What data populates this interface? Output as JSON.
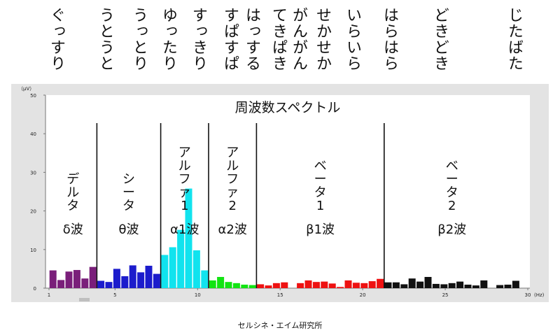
{
  "onomatopoeia": [
    "ぐっすり",
    "うとうと",
    "うっとり",
    "ゆったり",
    "すっきり",
    "すぱすぱ",
    "はっする",
    "てきぱき",
    "がんがん",
    "せかせか",
    "いらいら",
    "はらはら",
    "どきどき",
    "じたばた"
  ],
  "footer": "セルシネ・エイム研究所",
  "chart_data": {
    "type": "bar",
    "title": "周波数スペクトル",
    "y_unit": "（μV）",
    "x_unit": "(Hz)",
    "ylim": [
      0,
      50
    ],
    "xlim": [
      1,
      30
    ],
    "y_ticks": [
      0,
      10,
      20,
      30,
      40,
      50
    ],
    "x_ticks": [
      1,
      5,
      10,
      15,
      20,
      25,
      30
    ],
    "bands": [
      {
        "name": "デルタ",
        "wave": "δ波",
        "color": "#7a1f7a",
        "values": [
          4.6,
          2.1,
          4.3,
          4.7,
          2.5,
          5.5
        ]
      },
      {
        "name": "シータ",
        "wave": "θ波",
        "color": "#1c1ccc",
        "values": [
          1.9,
          1.6,
          5.0,
          3.1,
          5.9,
          4.1,
          5.8,
          3.7
        ]
      },
      {
        "name": "アルファ1",
        "wave": "α1波",
        "color": "#11e3ee",
        "values": [
          8.6,
          10.6,
          15.1,
          25.8,
          9.8,
          4.6
        ]
      },
      {
        "name": "アルファ2",
        "wave": "α2波",
        "color": "#12e412",
        "values": [
          2.0,
          2.9,
          1.6,
          1.3,
          0.9,
          0.8
        ]
      },
      {
        "name": "ベータ1",
        "wave": "β1波",
        "color": "#ee1111",
        "values": [
          1.0,
          0.7,
          1.3,
          1.5,
          0.0,
          1.3,
          2.0,
          1.6,
          1.7,
          1.2,
          0.3,
          2.0,
          1.4,
          1.3,
          1.8,
          2.4
        ]
      },
      {
        "name": "ベータ2",
        "wave": "β2波",
        "color": "#111111",
        "values": [
          1.5,
          1.5,
          1.0,
          2.5,
          1.7,
          2.9,
          1.1,
          1.0,
          1.3,
          1.7,
          0.9,
          0.7,
          2.0,
          0.0,
          0.8,
          0.9,
          1.9
        ]
      }
    ],
    "grid": false,
    "legend": "none"
  }
}
